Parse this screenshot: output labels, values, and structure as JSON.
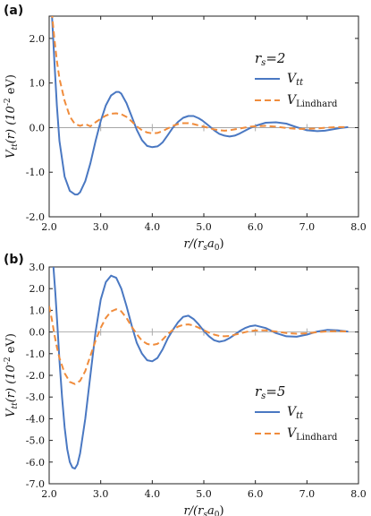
{
  "chart_data": [
    {
      "type": "line",
      "panel_label": "(a)",
      "param_text": "r",
      "param_sub": "s",
      "param_value": "=2",
      "xlabel": "r/(r",
      "xlabel_sub": "s",
      "xlabel_mid": "a",
      "xlabel_sub2": "0",
      "xlabel_end": ")",
      "ylabel": "V",
      "ylabel_sub": "tt",
      "ylabel_rest": "(r) (10",
      "ylabel_sup": "-2",
      "ylabel_end": "eV)",
      "xlim": [
        2.0,
        8.0
      ],
      "ylim": [
        -2.0,
        2.5
      ],
      "xticks": [
        "2.0",
        "3.0",
        "4.0",
        "5.0",
        "6.0",
        "7.0",
        "8.0"
      ],
      "xtick_values": [
        2,
        3,
        4,
        5,
        6,
        7,
        8
      ],
      "yticks": [
        "-2.0",
        "-1.0",
        "0.0",
        "1.0",
        "2.0"
      ],
      "ytick_values": [
        -2,
        -1,
        0,
        1,
        2
      ],
      "legend_position": "right",
      "series": [
        {
          "name": "V",
          "name_sub": "tt",
          "color": "#4a78c2",
          "dash": "solid",
          "x": [
            2.05,
            2.1,
            2.15,
            2.2,
            2.3,
            2.4,
            2.5,
            2.55,
            2.6,
            2.7,
            2.8,
            2.9,
            3.0,
            3.1,
            3.2,
            3.3,
            3.35,
            3.4,
            3.5,
            3.6,
            3.7,
            3.8,
            3.9,
            4.0,
            4.1,
            4.15,
            4.2,
            4.3,
            4.4,
            4.5,
            4.6,
            4.7,
            4.8,
            4.9,
            4.97,
            5.1,
            5.2,
            5.3,
            5.4,
            5.5,
            5.6,
            5.7,
            5.8,
            5.9,
            6.0,
            6.2,
            6.4,
            6.6,
            6.7,
            6.8,
            7.0,
            7.2,
            7.35,
            7.5,
            7.65,
            7.8
          ],
          "y": [
            2.6,
            1.5,
            0.5,
            -0.3,
            -1.1,
            -1.42,
            -1.5,
            -1.5,
            -1.45,
            -1.2,
            -0.8,
            -0.3,
            0.15,
            0.5,
            0.72,
            0.8,
            0.8,
            0.76,
            0.55,
            0.25,
            -0.05,
            -0.28,
            -0.41,
            -0.44,
            -0.42,
            -0.38,
            -0.33,
            -0.17,
            0.0,
            0.13,
            0.22,
            0.26,
            0.26,
            0.21,
            0.16,
            0.04,
            -0.06,
            -0.14,
            -0.18,
            -0.2,
            -0.18,
            -0.13,
            -0.07,
            -0.01,
            0.04,
            0.11,
            0.12,
            0.09,
            0.05,
            0.01,
            -0.06,
            -0.08,
            -0.07,
            -0.04,
            -0.01,
            0.01
          ]
        },
        {
          "name": "V",
          "name_sub": "Lindhard",
          "color": "#f08c3c",
          "dash": "dashed",
          "x": [
            2.05,
            2.1,
            2.15,
            2.2,
            2.3,
            2.4,
            2.5,
            2.6,
            2.7,
            2.8,
            2.9,
            3.0,
            3.1,
            3.2,
            3.3,
            3.4,
            3.5,
            3.6,
            3.7,
            3.8,
            3.9,
            4.0,
            4.1,
            4.2,
            4.3,
            4.4,
            4.5,
            4.6,
            4.7,
            4.8,
            4.9,
            5.0,
            5.1,
            5.2,
            5.3,
            5.4,
            5.5,
            5.6,
            5.7,
            5.8,
            5.9,
            6.0,
            6.2,
            6.4,
            6.6,
            6.8,
            7.0,
            7.2,
            7.4,
            7.6,
            7.8
          ],
          "y": [
            2.6,
            2.0,
            1.5,
            1.1,
            0.6,
            0.25,
            0.08,
            0.04,
            0.08,
            0.03,
            0.12,
            0.2,
            0.27,
            0.31,
            0.32,
            0.3,
            0.24,
            0.14,
            0.03,
            -0.06,
            -0.11,
            -0.13,
            -0.12,
            -0.08,
            -0.02,
            0.04,
            0.08,
            0.1,
            0.1,
            0.08,
            0.05,
            0.02,
            -0.01,
            -0.04,
            -0.06,
            -0.07,
            -0.06,
            -0.04,
            -0.02,
            0.0,
            0.02,
            0.03,
            0.04,
            0.02,
            -0.01,
            -0.03,
            -0.03,
            -0.02,
            0.0,
            0.01,
            0.01
          ]
        }
      ]
    },
    {
      "type": "line",
      "panel_label": "(b)",
      "param_text": "r",
      "param_sub": "s",
      "param_value": "=5",
      "xlabel": "r/(r",
      "xlabel_sub": "s",
      "xlabel_mid": "a",
      "xlabel_sub2": "0",
      "xlabel_end": ")",
      "ylabel": "V",
      "ylabel_sub": "tt",
      "ylabel_rest": "(r) (10",
      "ylabel_sup": "-2",
      "ylabel_end": "eV)",
      "xlim": [
        2.0,
        8.0
      ],
      "ylim": [
        -7.0,
        3.0
      ],
      "xticks": [
        "2.0",
        "3.0",
        "4.0",
        "5.0",
        "6.0",
        "7.0",
        "8.0"
      ],
      "xtick_values": [
        2,
        3,
        4,
        5,
        6,
        7,
        8
      ],
      "yticks": [
        "-7.0",
        "-6.0",
        "-5.0",
        "-4.0",
        "-3.0",
        "-2.0",
        "-1.0",
        "0.0",
        "1.0",
        "2.0",
        "3.0"
      ],
      "ytick_values": [
        -7,
        -6,
        -5,
        -4,
        -3,
        -2,
        -1,
        0,
        1,
        2,
        3
      ],
      "legend_position": "bottom-right",
      "series": [
        {
          "name": "V",
          "name_sub": "tt",
          "color": "#4a78c2",
          "dash": "solid",
          "x": [
            2.08,
            2.12,
            2.16,
            2.2,
            2.25,
            2.3,
            2.35,
            2.4,
            2.45,
            2.5,
            2.55,
            2.6,
            2.7,
            2.8,
            2.9,
            3.0,
            3.1,
            3.2,
            3.3,
            3.4,
            3.5,
            3.6,
            3.7,
            3.8,
            3.9,
            4.0,
            4.1,
            4.2,
            4.3,
            4.4,
            4.5,
            4.6,
            4.7,
            4.8,
            4.9,
            5.0,
            5.1,
            5.2,
            5.3,
            5.4,
            5.5,
            5.6,
            5.7,
            5.8,
            5.9,
            6.0,
            6.2,
            6.4,
            6.6,
            6.8,
            7.0,
            7.2,
            7.4,
            7.6,
            7.8
          ],
          "y": [
            3.1,
            1.8,
            0.3,
            -1.3,
            -3.0,
            -4.4,
            -5.4,
            -6.0,
            -6.25,
            -6.3,
            -6.1,
            -5.6,
            -4.0,
            -2.0,
            0.0,
            1.5,
            2.3,
            2.6,
            2.5,
            2.0,
            1.2,
            0.3,
            -0.5,
            -1.0,
            -1.3,
            -1.35,
            -1.2,
            -0.8,
            -0.3,
            0.1,
            0.45,
            0.7,
            0.75,
            0.6,
            0.35,
            0.05,
            -0.2,
            -0.38,
            -0.45,
            -0.4,
            -0.28,
            -0.12,
            0.05,
            0.18,
            0.27,
            0.3,
            0.18,
            -0.05,
            -0.2,
            -0.22,
            -0.12,
            0.02,
            0.1,
            0.08,
            0.02
          ]
        },
        {
          "name": "V",
          "name_sub": "Lindhard",
          "color": "#f08c3c",
          "dash": "dashed",
          "x": [
            2.0,
            2.05,
            2.1,
            2.15,
            2.2,
            2.3,
            2.4,
            2.5,
            2.6,
            2.7,
            2.8,
            2.9,
            3.0,
            3.1,
            3.2,
            3.3,
            3.4,
            3.5,
            3.6,
            3.7,
            3.8,
            3.9,
            4.0,
            4.1,
            4.2,
            4.3,
            4.4,
            4.5,
            4.6,
            4.7,
            4.8,
            4.9,
            5.0,
            5.1,
            5.2,
            5.3,
            5.4,
            5.5,
            5.6,
            5.7,
            5.8,
            5.9,
            6.0,
            6.2,
            6.4,
            6.6,
            6.8,
            7.0,
            7.2,
            7.4,
            7.6,
            7.8
          ],
          "y": [
            1.2,
            0.6,
            -0.1,
            -0.7,
            -1.2,
            -1.9,
            -2.3,
            -2.4,
            -2.25,
            -1.8,
            -1.1,
            -0.4,
            0.2,
            0.65,
            0.95,
            1.05,
            0.95,
            0.65,
            0.25,
            -0.1,
            -0.4,
            -0.55,
            -0.6,
            -0.55,
            -0.35,
            -0.1,
            0.1,
            0.25,
            0.33,
            0.35,
            0.3,
            0.2,
            0.08,
            -0.03,
            -0.12,
            -0.18,
            -0.2,
            -0.18,
            -0.13,
            -0.07,
            -0.01,
            0.04,
            0.07,
            0.08,
            0.02,
            -0.05,
            -0.08,
            -0.06,
            -0.01,
            0.03,
            0.04,
            0.02
          ]
        }
      ]
    }
  ]
}
